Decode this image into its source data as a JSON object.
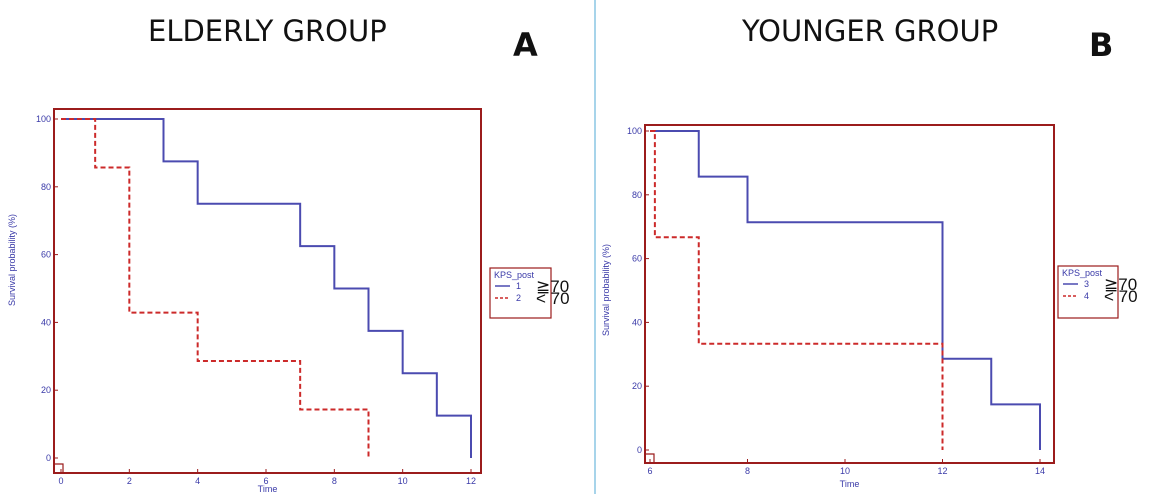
{
  "panels": [
    {
      "title": "ELDERLY GROUP",
      "letter": "A",
      "chart_data": {
        "type": "line",
        "step": true,
        "xlabel": "Time",
        "ylabel": "Survival probability (%)",
        "xlim": [
          0,
          12
        ],
        "ylim": [
          0,
          100
        ],
        "xticks": [
          0,
          2,
          4,
          6,
          8,
          10,
          12
        ],
        "yticks": [
          0,
          20,
          40,
          60,
          80,
          100
        ],
        "grid": false,
        "legend": {
          "title": "KPS_post",
          "position": "right",
          "entries": [
            "1",
            "2"
          ],
          "annotations": [
            "≧70",
            "< 70"
          ]
        },
        "series": [
          {
            "name": "1",
            "color": "#4b4bb0",
            "dash": "solid",
            "x": [
              0,
              3,
              4,
              7,
              8,
              9,
              10,
              11,
              12,
              12
            ],
            "y": [
              100,
              87.5,
              75,
              62.5,
              50,
              37.5,
              25,
              12.5,
              12.5,
              0
            ]
          },
          {
            "name": "2",
            "color": "#cc2a2a",
            "dash": "dashed",
            "x": [
              0,
              1,
              2,
              4,
              7,
              9,
              9
            ],
            "y": [
              100,
              85.7,
              42.9,
              28.6,
              14.3,
              14.3,
              0
            ]
          }
        ]
      }
    },
    {
      "title": "YOUNGER GROUP",
      "letter": "B",
      "chart_data": {
        "type": "line",
        "step": true,
        "xlabel": "Time",
        "ylabel": "Survival probability (%)",
        "xlim": [
          6,
          14
        ],
        "ylim": [
          0,
          100
        ],
        "xticks": [
          6,
          8,
          10,
          12,
          14
        ],
        "yticks": [
          0,
          20,
          40,
          60,
          80,
          100
        ],
        "grid": false,
        "legend": {
          "title": "KPS_post",
          "position": "right",
          "entries": [
            "3",
            "4"
          ],
          "annotations": [
            "≧70",
            "< 70"
          ]
        },
        "series": [
          {
            "name": "3",
            "color": "#4b4bb0",
            "dash": "solid",
            "x": [
              6,
              7,
              8,
              12,
              13,
              14,
              14
            ],
            "y": [
              100,
              85.7,
              71.4,
              28.6,
              14.3,
              14.3,
              0
            ]
          },
          {
            "name": "4",
            "color": "#cc2a2a",
            "dash": "dashed",
            "x": [
              6,
              6.1,
              7,
              12,
              12
            ],
            "y": [
              100,
              66.7,
              33.3,
              33.3,
              0
            ]
          }
        ]
      }
    }
  ]
}
